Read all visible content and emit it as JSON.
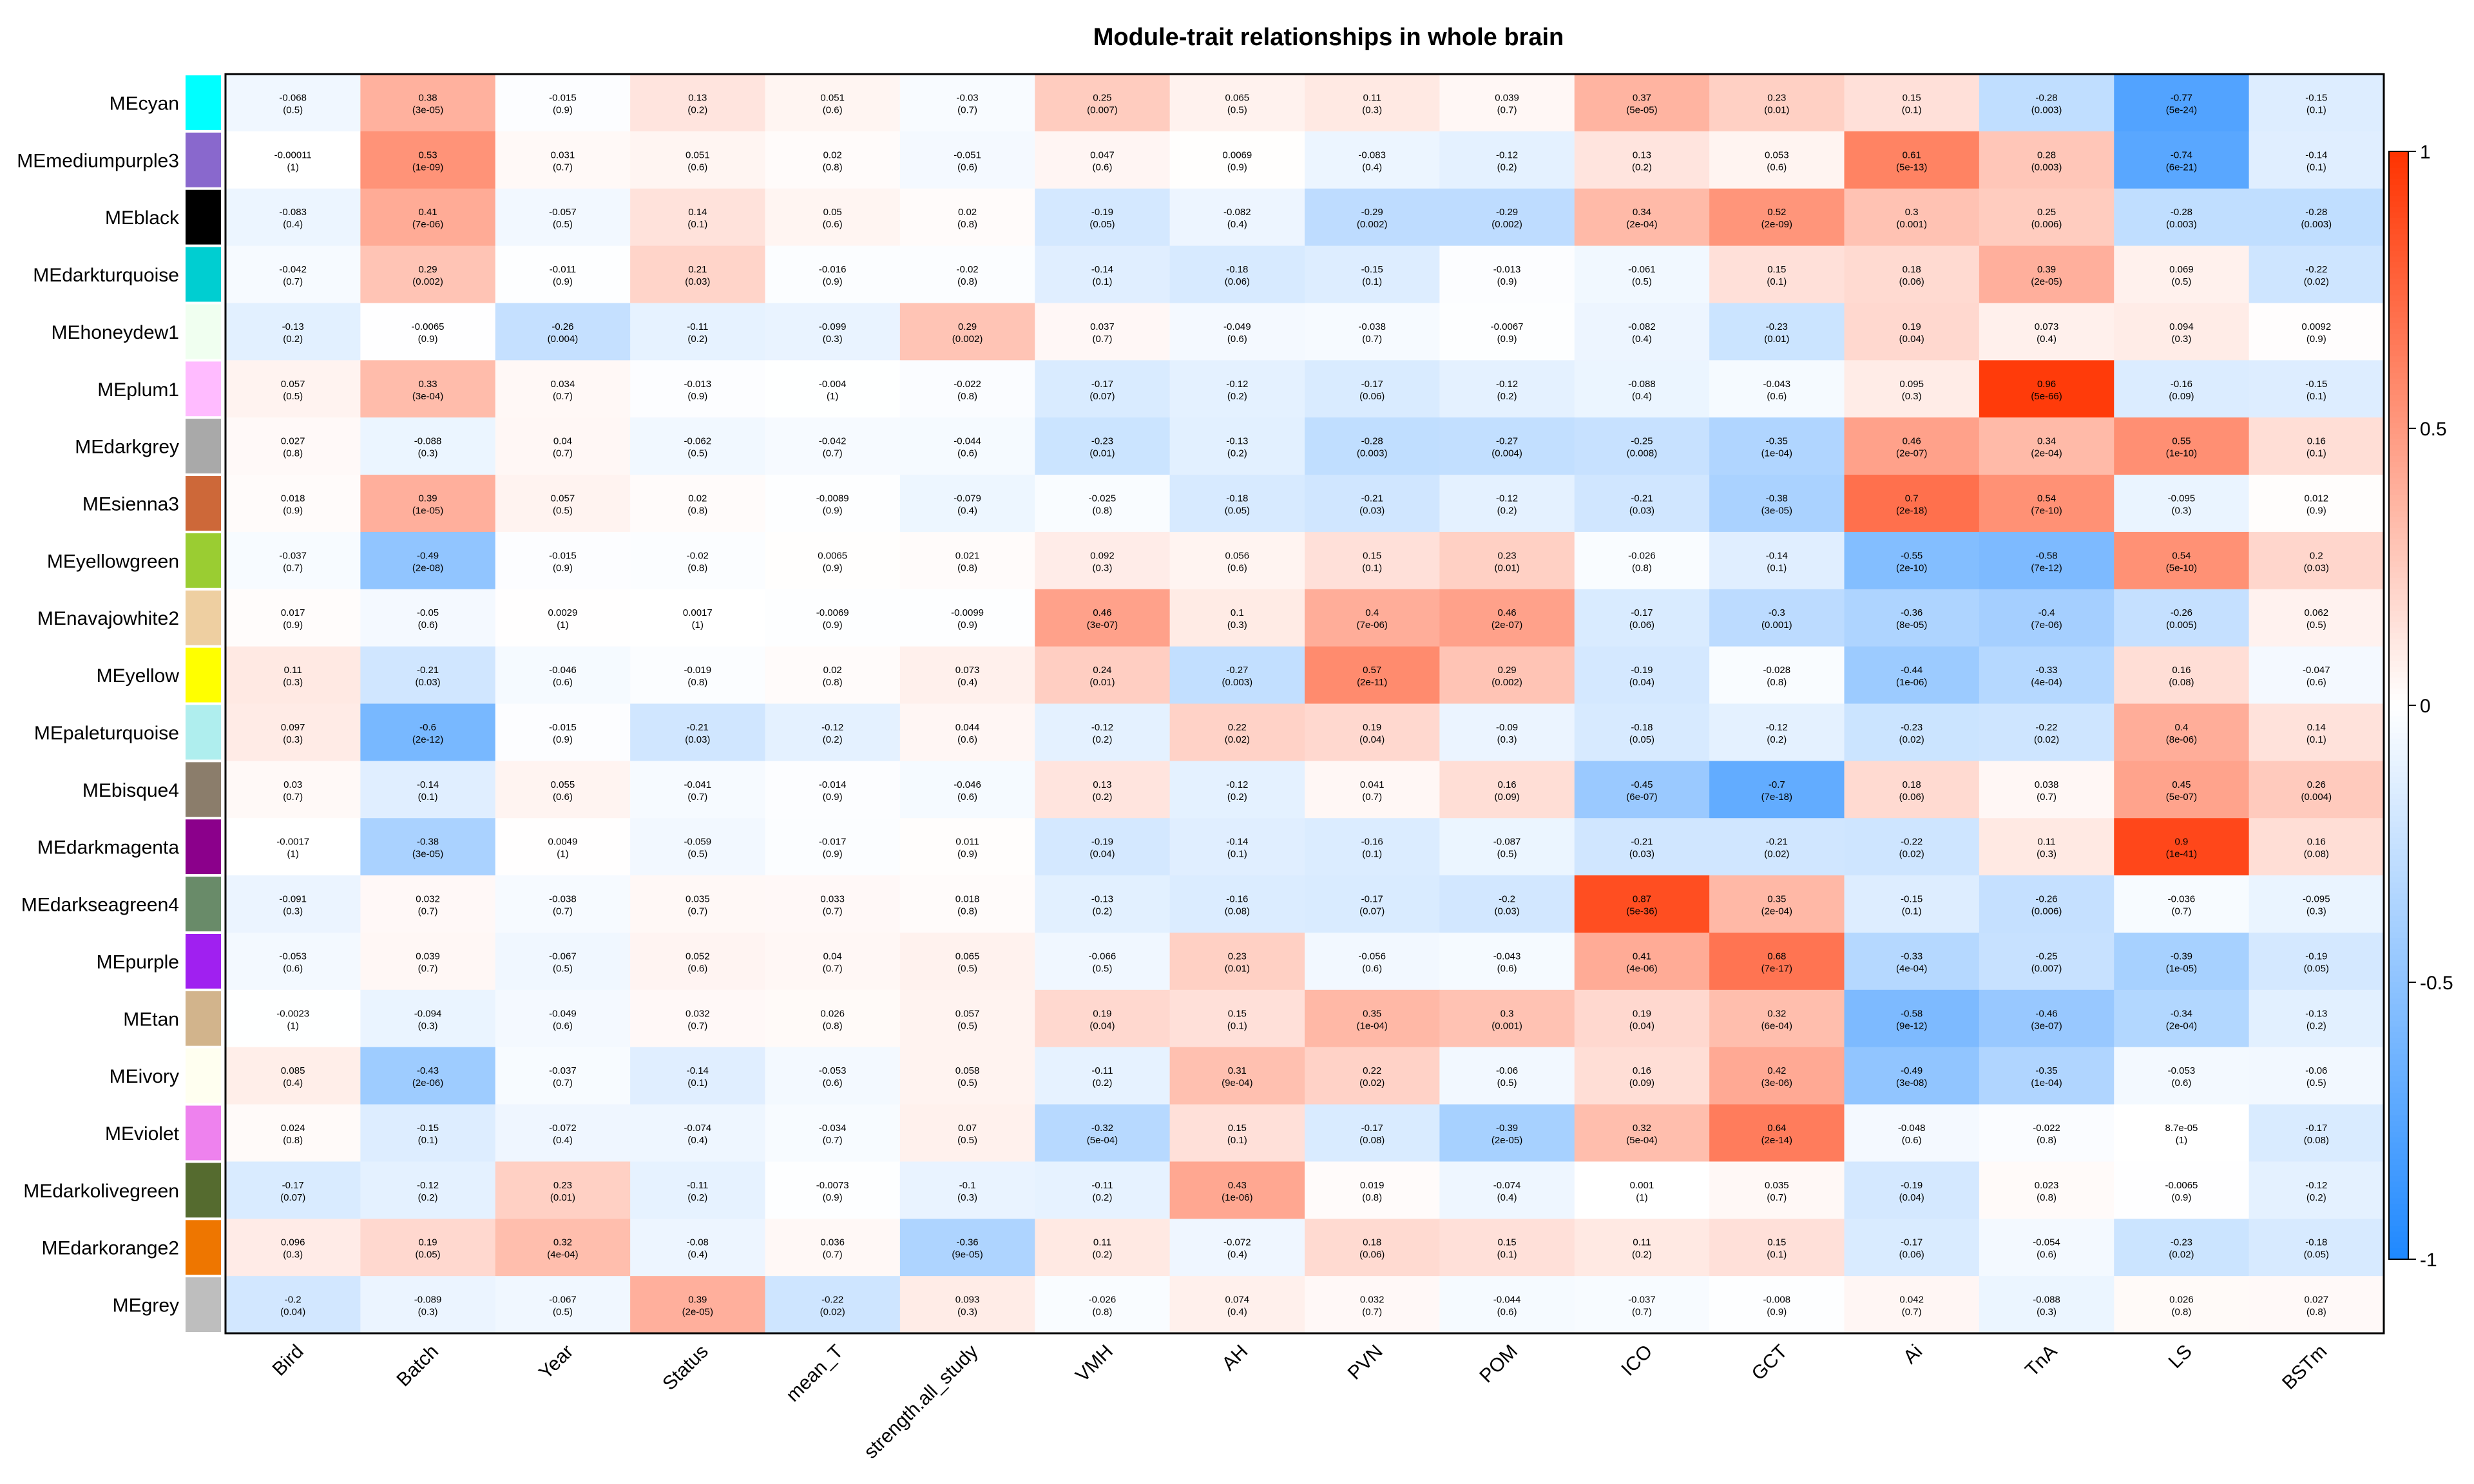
{
  "chart_data": {
    "type": "heatmap",
    "title": "Module-trait relationships in whole brain",
    "xlabel": "",
    "ylabel": "",
    "colorbar": {
      "range": [
        -1,
        1
      ],
      "ticks": [
        "1",
        "0.5",
        "0",
        "-0.5",
        "-1"
      ],
      "low_color": "#1E88FF",
      "mid_color": "#FFFFFF",
      "high_color": "#FF3300"
    },
    "traits": [
      "Bird",
      "Batch",
      "Year",
      "Status",
      "mean_T",
      "strength.all_study",
      "VMH",
      "AH",
      "PVN",
      "POM",
      "ICO",
      "GCT",
      "Ai",
      "TnA",
      "LS",
      "BSTm"
    ],
    "modules": [
      {
        "name": "MEcyan",
        "swatch": "#00FFFF",
        "r": [
          "-0.068",
          "0.38",
          "-0.015",
          "0.13",
          "0.051",
          "-0.03",
          "0.25",
          "0.065",
          "0.11",
          "0.039",
          "0.37",
          "0.23",
          "0.15",
          "-0.28",
          "-0.77",
          "-0.15"
        ],
        "p": [
          "(0.5)",
          "(3e-05)",
          "(0.9)",
          "(0.2)",
          "(0.6)",
          "(0.7)",
          "(0.007)",
          "(0.5)",
          "(0.3)",
          "(0.7)",
          "(5e-05)",
          "(0.01)",
          "(0.1)",
          "(0.003)",
          "(5e-24)",
          "(0.1)"
        ]
      },
      {
        "name": "MEmediumpurple3",
        "swatch": "#8968CD",
        "r": [
          "-0.00011",
          "0.53",
          "0.031",
          "0.051",
          "0.02",
          "-0.051",
          "0.047",
          "0.0069",
          "-0.083",
          "-0.12",
          "0.13",
          "0.053",
          "0.61",
          "0.28",
          "-0.74",
          "-0.14"
        ],
        "p": [
          "(1)",
          "(1e-09)",
          "(0.7)",
          "(0.6)",
          "(0.8)",
          "(0.6)",
          "(0.6)",
          "(0.9)",
          "(0.4)",
          "(0.2)",
          "(0.2)",
          "(0.6)",
          "(5e-13)",
          "(0.003)",
          "(6e-21)",
          "(0.1)"
        ]
      },
      {
        "name": "MEblack",
        "swatch": "#000000",
        "r": [
          "-0.083",
          "0.41",
          "-0.057",
          "0.14",
          "0.05",
          "0.02",
          "-0.19",
          "-0.082",
          "-0.29",
          "-0.29",
          "0.34",
          "0.52",
          "0.3",
          "0.25",
          "-0.28",
          "-0.28"
        ],
        "p": [
          "(0.4)",
          "(7e-06)",
          "(0.5)",
          "(0.1)",
          "(0.6)",
          "(0.8)",
          "(0.05)",
          "(0.4)",
          "(0.002)",
          "(0.002)",
          "(2e-04)",
          "(2e-09)",
          "(0.001)",
          "(0.006)",
          "(0.003)",
          "(0.003)"
        ]
      },
      {
        "name": "MEdarkturquoise",
        "swatch": "#00CED1",
        "r": [
          "-0.042",
          "0.29",
          "-0.011",
          "0.21",
          "-0.016",
          "-0.02",
          "-0.14",
          "-0.18",
          "-0.15",
          "-0.013",
          "-0.061",
          "0.15",
          "0.18",
          "0.39",
          "0.069",
          "-0.22"
        ],
        "p": [
          "(0.7)",
          "(0.002)",
          "(0.9)",
          "(0.03)",
          "(0.9)",
          "(0.8)",
          "(0.1)",
          "(0.06)",
          "(0.1)",
          "(0.9)",
          "(0.5)",
          "(0.1)",
          "(0.06)",
          "(2e-05)",
          "(0.5)",
          "(0.02)"
        ]
      },
      {
        "name": "MEhoneydew1",
        "swatch": "#F0FFF0",
        "r": [
          "-0.13",
          "-0.0065",
          "-0.26",
          "-0.11",
          "-0.099",
          "0.29",
          "0.037",
          "-0.049",
          "-0.038",
          "-0.0067",
          "-0.082",
          "-0.23",
          "0.19",
          "0.073",
          "0.094",
          "0.0092"
        ],
        "p": [
          "(0.2)",
          "(0.9)",
          "(0.004)",
          "(0.2)",
          "(0.3)",
          "(0.002)",
          "(0.7)",
          "(0.6)",
          "(0.7)",
          "(0.9)",
          "(0.4)",
          "(0.01)",
          "(0.04)",
          "(0.4)",
          "(0.3)",
          "(0.9)"
        ]
      },
      {
        "name": "MEplum1",
        "swatch": "#FFBBFF",
        "r": [
          "0.057",
          "0.33",
          "0.034",
          "-0.013",
          "-0.004",
          "-0.022",
          "-0.17",
          "-0.12",
          "-0.17",
          "-0.12",
          "-0.088",
          "-0.043",
          "0.095",
          "0.96",
          "-0.16",
          "-0.15"
        ],
        "p": [
          "(0.5)",
          "(3e-04)",
          "(0.7)",
          "(0.9)",
          "(1)",
          "(0.8)",
          "(0.07)",
          "(0.2)",
          "(0.06)",
          "(0.2)",
          "(0.4)",
          "(0.6)",
          "(0.3)",
          "(5e-66)",
          "(0.09)",
          "(0.1)"
        ]
      },
      {
        "name": "MEdarkgrey",
        "swatch": "#A9A9A9",
        "r": [
          "0.027",
          "-0.088",
          "0.04",
          "-0.062",
          "-0.042",
          "-0.044",
          "-0.23",
          "-0.13",
          "-0.28",
          "-0.27",
          "-0.25",
          "-0.35",
          "0.46",
          "0.34",
          "0.55",
          "0.16"
        ],
        "p": [
          "(0.8)",
          "(0.3)",
          "(0.7)",
          "(0.5)",
          "(0.7)",
          "(0.6)",
          "(0.01)",
          "(0.2)",
          "(0.003)",
          "(0.004)",
          "(0.008)",
          "(1e-04)",
          "(2e-07)",
          "(2e-04)",
          "(1e-10)",
          "(0.1)"
        ]
      },
      {
        "name": "MEsienna3",
        "swatch": "#CD6839",
        "r": [
          "0.018",
          "0.39",
          "0.057",
          "0.02",
          "-0.0089",
          "-0.079",
          "-0.025",
          "-0.18",
          "-0.21",
          "-0.12",
          "-0.21",
          "-0.38",
          "0.7",
          "0.54",
          "-0.095",
          "0.012"
        ],
        "p": [
          "(0.9)",
          "(1e-05)",
          "(0.5)",
          "(0.8)",
          "(0.9)",
          "(0.4)",
          "(0.8)",
          "(0.05)",
          "(0.03)",
          "(0.2)",
          "(0.03)",
          "(3e-05)",
          "(2e-18)",
          "(7e-10)",
          "(0.3)",
          "(0.9)"
        ]
      },
      {
        "name": "MEyellowgreen",
        "swatch": "#9ACD32",
        "r": [
          "-0.037",
          "-0.49",
          "-0.015",
          "-0.02",
          "0.0065",
          "0.021",
          "0.092",
          "0.056",
          "0.15",
          "0.23",
          "-0.026",
          "-0.14",
          "-0.55",
          "-0.58",
          "0.54",
          "0.2"
        ],
        "p": [
          "(0.7)",
          "(2e-08)",
          "(0.9)",
          "(0.8)",
          "(0.9)",
          "(0.8)",
          "(0.3)",
          "(0.6)",
          "(0.1)",
          "(0.01)",
          "(0.8)",
          "(0.1)",
          "(2e-10)",
          "(7e-12)",
          "(5e-10)",
          "(0.03)"
        ]
      },
      {
        "name": "MEnavajowhite2",
        "swatch": "#EECFA1",
        "r": [
          "0.017",
          "-0.05",
          "0.0029",
          "0.0017",
          "-0.0069",
          "-0.0099",
          "0.46",
          "0.1",
          "0.4",
          "0.46",
          "-0.17",
          "-0.3",
          "-0.36",
          "-0.4",
          "-0.26",
          "0.062"
        ],
        "p": [
          "(0.9)",
          "(0.6)",
          "(1)",
          "(1)",
          "(0.9)",
          "(0.9)",
          "(3e-07)",
          "(0.3)",
          "(7e-06)",
          "(2e-07)",
          "(0.06)",
          "(0.001)",
          "(8e-05)",
          "(7e-06)",
          "(0.005)",
          "(0.5)"
        ]
      },
      {
        "name": "MEyellow",
        "swatch": "#FFFF00",
        "r": [
          "0.11",
          "-0.21",
          "-0.046",
          "-0.019",
          "0.02",
          "0.073",
          "0.24",
          "-0.27",
          "0.57",
          "0.29",
          "-0.19",
          "-0.028",
          "-0.44",
          "-0.33",
          "0.16",
          "-0.047"
        ],
        "p": [
          "(0.3)",
          "(0.03)",
          "(0.6)",
          "(0.8)",
          "(0.8)",
          "(0.4)",
          "(0.01)",
          "(0.003)",
          "(2e-11)",
          "(0.002)",
          "(0.04)",
          "(0.8)",
          "(1e-06)",
          "(4e-04)",
          "(0.08)",
          "(0.6)"
        ]
      },
      {
        "name": "MEpaleturquoise",
        "swatch": "#AFEEEE",
        "r": [
          "0.097",
          "-0.6",
          "-0.015",
          "-0.21",
          "-0.12",
          "0.044",
          "-0.12",
          "0.22",
          "0.19",
          "-0.09",
          "-0.18",
          "-0.12",
          "-0.23",
          "-0.22",
          "0.4",
          "0.14"
        ],
        "p": [
          "(0.3)",
          "(2e-12)",
          "(0.9)",
          "(0.03)",
          "(0.2)",
          "(0.6)",
          "(0.2)",
          "(0.02)",
          "(0.04)",
          "(0.3)",
          "(0.05)",
          "(0.2)",
          "(0.02)",
          "(0.02)",
          "(8e-06)",
          "(0.1)"
        ]
      },
      {
        "name": "MEbisque4",
        "swatch": "#8B7D6B",
        "r": [
          "0.03",
          "-0.14",
          "0.055",
          "-0.041",
          "-0.014",
          "-0.046",
          "0.13",
          "-0.12",
          "0.041",
          "0.16",
          "-0.45",
          "-0.7",
          "0.18",
          "0.038",
          "0.45",
          "0.26"
        ],
        "p": [
          "(0.7)",
          "(0.1)",
          "(0.6)",
          "(0.7)",
          "(0.9)",
          "(0.6)",
          "(0.2)",
          "(0.2)",
          "(0.7)",
          "(0.09)",
          "(6e-07)",
          "(7e-18)",
          "(0.06)",
          "(0.7)",
          "(5e-07)",
          "(0.004)"
        ]
      },
      {
        "name": "MEdarkmagenta",
        "swatch": "#8B008B",
        "r": [
          "-0.0017",
          "-0.38",
          "0.0049",
          "-0.059",
          "-0.017",
          "0.011",
          "-0.19",
          "-0.14",
          "-0.16",
          "-0.087",
          "-0.21",
          "-0.21",
          "-0.22",
          "0.11",
          "0.9",
          "0.16"
        ],
        "p": [
          "(1)",
          "(3e-05)",
          "(1)",
          "(0.5)",
          "(0.9)",
          "(0.9)",
          "(0.04)",
          "(0.1)",
          "(0.1)",
          "(0.5)",
          "(0.03)",
          "(0.02)",
          "(0.02)",
          "(0.3)",
          "(1e-41)",
          "(0.08)"
        ]
      },
      {
        "name": "MEdarkseagreen4",
        "swatch": "#698B69",
        "r": [
          "-0.091",
          "0.032",
          "-0.038",
          "0.035",
          "0.033",
          "0.018",
          "-0.13",
          "-0.16",
          "-0.17",
          "-0.2",
          "0.87",
          "0.35",
          "-0.15",
          "-0.26",
          "-0.036",
          "-0.095"
        ],
        "p": [
          "(0.3)",
          "(0.7)",
          "(0.7)",
          "(0.7)",
          "(0.7)",
          "(0.8)",
          "(0.2)",
          "(0.08)",
          "(0.07)",
          "(0.03)",
          "(5e-36)",
          "(2e-04)",
          "(0.1)",
          "(0.006)",
          "(0.7)",
          "(0.3)"
        ]
      },
      {
        "name": "MEpurple",
        "swatch": "#A020F0",
        "r": [
          "-0.053",
          "0.039",
          "-0.067",
          "0.052",
          "0.04",
          "0.065",
          "-0.066",
          "0.23",
          "-0.056",
          "-0.043",
          "0.41",
          "0.68",
          "-0.33",
          "-0.25",
          "-0.39",
          "-0.19"
        ],
        "p": [
          "(0.6)",
          "(0.7)",
          "(0.5)",
          "(0.6)",
          "(0.7)",
          "(0.5)",
          "(0.5)",
          "(0.01)",
          "(0.6)",
          "(0.6)",
          "(4e-06)",
          "(7e-17)",
          "(4e-04)",
          "(0.007)",
          "(1e-05)",
          "(0.05)"
        ]
      },
      {
        "name": "MEtan",
        "swatch": "#D2B48C",
        "r": [
          "-0.0023",
          "-0.094",
          "-0.049",
          "0.032",
          "0.026",
          "0.057",
          "0.19",
          "0.15",
          "0.35",
          "0.3",
          "0.19",
          "0.32",
          "-0.58",
          "-0.46",
          "-0.34",
          "-0.13"
        ],
        "p": [
          "(1)",
          "(0.3)",
          "(0.6)",
          "(0.7)",
          "(0.8)",
          "(0.5)",
          "(0.04)",
          "(0.1)",
          "(1e-04)",
          "(0.001)",
          "(0.04)",
          "(6e-04)",
          "(9e-12)",
          "(3e-07)",
          "(2e-04)",
          "(0.2)"
        ]
      },
      {
        "name": "MEivory",
        "swatch": "#FFFFF0",
        "r": [
          "0.085",
          "-0.43",
          "-0.037",
          "-0.14",
          "-0.053",
          "0.058",
          "-0.11",
          "0.31",
          "0.22",
          "-0.06",
          "0.16",
          "0.42",
          "-0.49",
          "-0.35",
          "-0.053",
          "-0.06"
        ],
        "p": [
          "(0.4)",
          "(2e-06)",
          "(0.7)",
          "(0.1)",
          "(0.6)",
          "(0.5)",
          "(0.2)",
          "(9e-04)",
          "(0.02)",
          "(0.5)",
          "(0.09)",
          "(3e-06)",
          "(3e-08)",
          "(1e-04)",
          "(0.6)",
          "(0.5)"
        ]
      },
      {
        "name": "MEviolet",
        "swatch": "#EE82EE",
        "r": [
          "0.024",
          "-0.15",
          "-0.072",
          "-0.074",
          "-0.034",
          "0.07",
          "-0.32",
          "0.15",
          "-0.17",
          "-0.39",
          "0.32",
          "0.64",
          "-0.048",
          "-0.022",
          "8.7e-05",
          "-0.17"
        ],
        "p": [
          "(0.8)",
          "(0.1)",
          "(0.4)",
          "(0.4)",
          "(0.7)",
          "(0.5)",
          "(5e-04)",
          "(0.1)",
          "(0.08)",
          "(2e-05)",
          "(5e-04)",
          "(2e-14)",
          "(0.6)",
          "(0.8)",
          "(1)",
          "(0.08)"
        ]
      },
      {
        "name": "MEdarkolivegreen",
        "swatch": "#556B2F",
        "r": [
          "-0.17",
          "-0.12",
          "0.23",
          "-0.11",
          "-0.0073",
          "-0.1",
          "-0.11",
          "0.43",
          "0.019",
          "-0.074",
          "0.001",
          "0.035",
          "-0.19",
          "0.023",
          "-0.0065",
          "-0.12"
        ],
        "p": [
          "(0.07)",
          "(0.2)",
          "(0.01)",
          "(0.2)",
          "(0.9)",
          "(0.3)",
          "(0.2)",
          "(1e-06)",
          "(0.8)",
          "(0.4)",
          "(1)",
          "(0.7)",
          "(0.04)",
          "(0.8)",
          "(0.9)",
          "(0.2)"
        ]
      },
      {
        "name": "MEdarkorange2",
        "swatch": "#EE7600",
        "r": [
          "0.096",
          "0.19",
          "0.32",
          "-0.08",
          "0.036",
          "-0.36",
          "0.11",
          "-0.072",
          "0.18",
          "0.15",
          "0.11",
          "0.15",
          "-0.17",
          "-0.054",
          "-0.23",
          "-0.18"
        ],
        "p": [
          "(0.3)",
          "(0.05)",
          "(4e-04)",
          "(0.4)",
          "(0.7)",
          "(9e-05)",
          "(0.2)",
          "(0.4)",
          "(0.06)",
          "(0.1)",
          "(0.2)",
          "(0.1)",
          "(0.06)",
          "(0.6)",
          "(0.02)",
          "(0.05)"
        ]
      },
      {
        "name": "MEgrey",
        "swatch": "#BEBEBE",
        "r": [
          "-0.2",
          "-0.089",
          "-0.067",
          "0.39",
          "-0.22",
          "0.093",
          "-0.026",
          "0.074",
          "0.032",
          "-0.044",
          "-0.037",
          "-0.008",
          "0.042",
          "-0.088",
          "0.026",
          "0.027"
        ],
        "p": [
          "(0.04)",
          "(0.3)",
          "(0.5)",
          "(2e-05)",
          "(0.02)",
          "(0.3)",
          "(0.8)",
          "(0.4)",
          "(0.7)",
          "(0.6)",
          "(0.7)",
          "(0.9)",
          "(0.7)",
          "(0.3)",
          "(0.8)",
          "(0.8)"
        ]
      }
    ]
  }
}
